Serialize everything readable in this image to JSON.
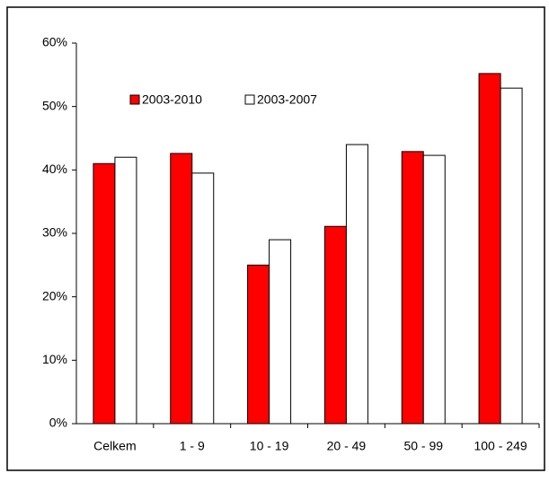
{
  "chart_data": {
    "type": "bar",
    "categories": [
      "Celkem",
      "1 - 9",
      "10 - 19",
      "20 - 49",
      "50 - 99",
      "100 - 249"
    ],
    "series": [
      {
        "name": "2003-2010",
        "color": "#ff0000",
        "values": [
          41,
          42.6,
          25,
          31.1,
          42.9,
          55.2
        ]
      },
      {
        "name": "2003-2007",
        "color": "#ffffff",
        "values": [
          42,
          39.5,
          29,
          44,
          42.3,
          52.9
        ]
      }
    ],
    "ylim": [
      0,
      60
    ],
    "yticks": [
      {
        "value": 0,
        "label": "0%"
      },
      {
        "value": 10,
        "label": "10%"
      },
      {
        "value": 20,
        "label": "20%"
      },
      {
        "value": 30,
        "label": "30%"
      },
      {
        "value": 40,
        "label": "40%"
      },
      {
        "value": 50,
        "label": "50%"
      },
      {
        "value": 60,
        "label": "60%"
      }
    ]
  }
}
